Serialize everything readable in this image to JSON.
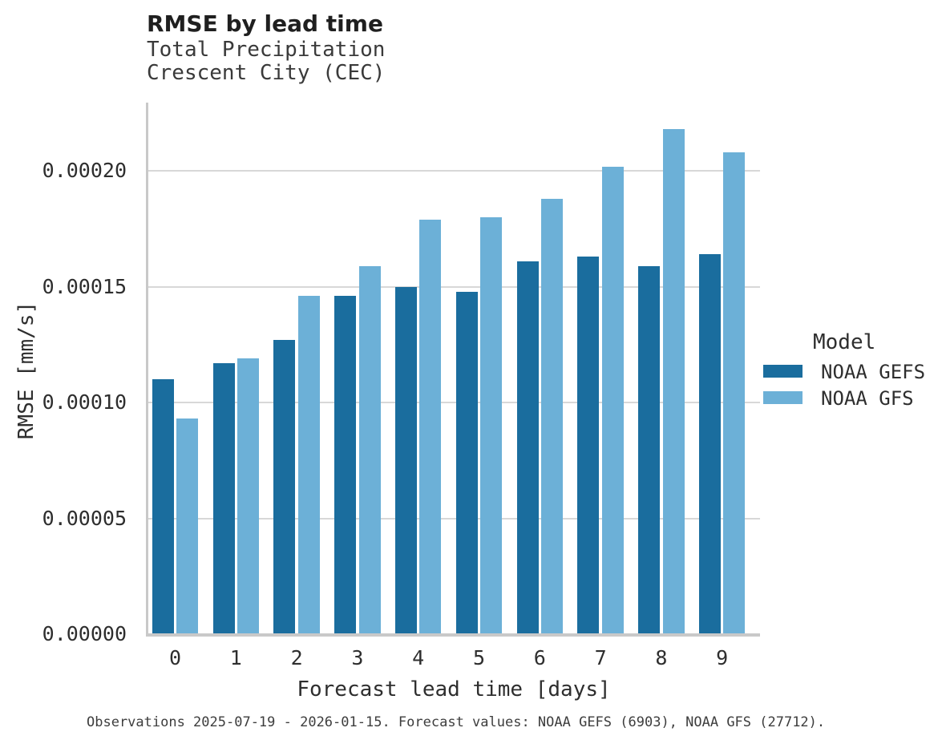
{
  "header": {
    "title": "RMSE by lead time",
    "subtitle_line1": "Total Precipitation",
    "subtitle_line2": "Crescent City (CEC)"
  },
  "axes": {
    "xlabel": "Forecast lead time [days]",
    "ylabel": "RMSE [mm/s]"
  },
  "legend": {
    "title": "Model",
    "items": [
      {
        "label": "NOAA GEFS",
        "color": "#1a6d9e"
      },
      {
        "label": "NOAA GFS",
        "color": "#6cb0d7"
      }
    ]
  },
  "footer": {
    "note": "Observations 2025-07-19 - 2026-01-15. Forecast values: NOAA GEFS (6903), NOAA GFS (27712)."
  },
  "chart_data": {
    "type": "bar",
    "title": "RMSE by lead time",
    "subtitle": [
      "Total Precipitation",
      "Crescent City (CEC)"
    ],
    "xlabel": "Forecast lead time [days]",
    "ylabel": "RMSE [mm/s]",
    "categories": [
      0,
      1,
      2,
      3,
      4,
      5,
      6,
      7,
      8,
      9
    ],
    "series": [
      {
        "name": "NOAA GEFS",
        "color": "#1a6d9e",
        "values": [
          0.00011,
          0.000117,
          0.000127,
          0.000146,
          0.00015,
          0.000148,
          0.000161,
          0.000163,
          0.000159,
          0.000164
        ]
      },
      {
        "name": "NOAA GFS",
        "color": "#6cb0d7",
        "values": [
          9.3e-05,
          0.000119,
          0.000146,
          0.000159,
          0.000179,
          0.00018,
          0.000188,
          0.000202,
          0.000218,
          0.000208
        ]
      }
    ],
    "ylim": [
      0,
      0.000229
    ],
    "yticks": [
      0.0,
      5e-05,
      0.0001,
      0.00015,
      0.0002
    ],
    "ytick_labels": [
      "0.00000",
      "0.00005",
      "0.00010",
      "0.00015",
      "0.00020"
    ],
    "grid": true,
    "legend_title": "Model",
    "legend_position": "center-right",
    "annotation": "Observations 2025-07-19 - 2026-01-15. Forecast values: NOAA GEFS (6903), NOAA GFS (27712)."
  }
}
